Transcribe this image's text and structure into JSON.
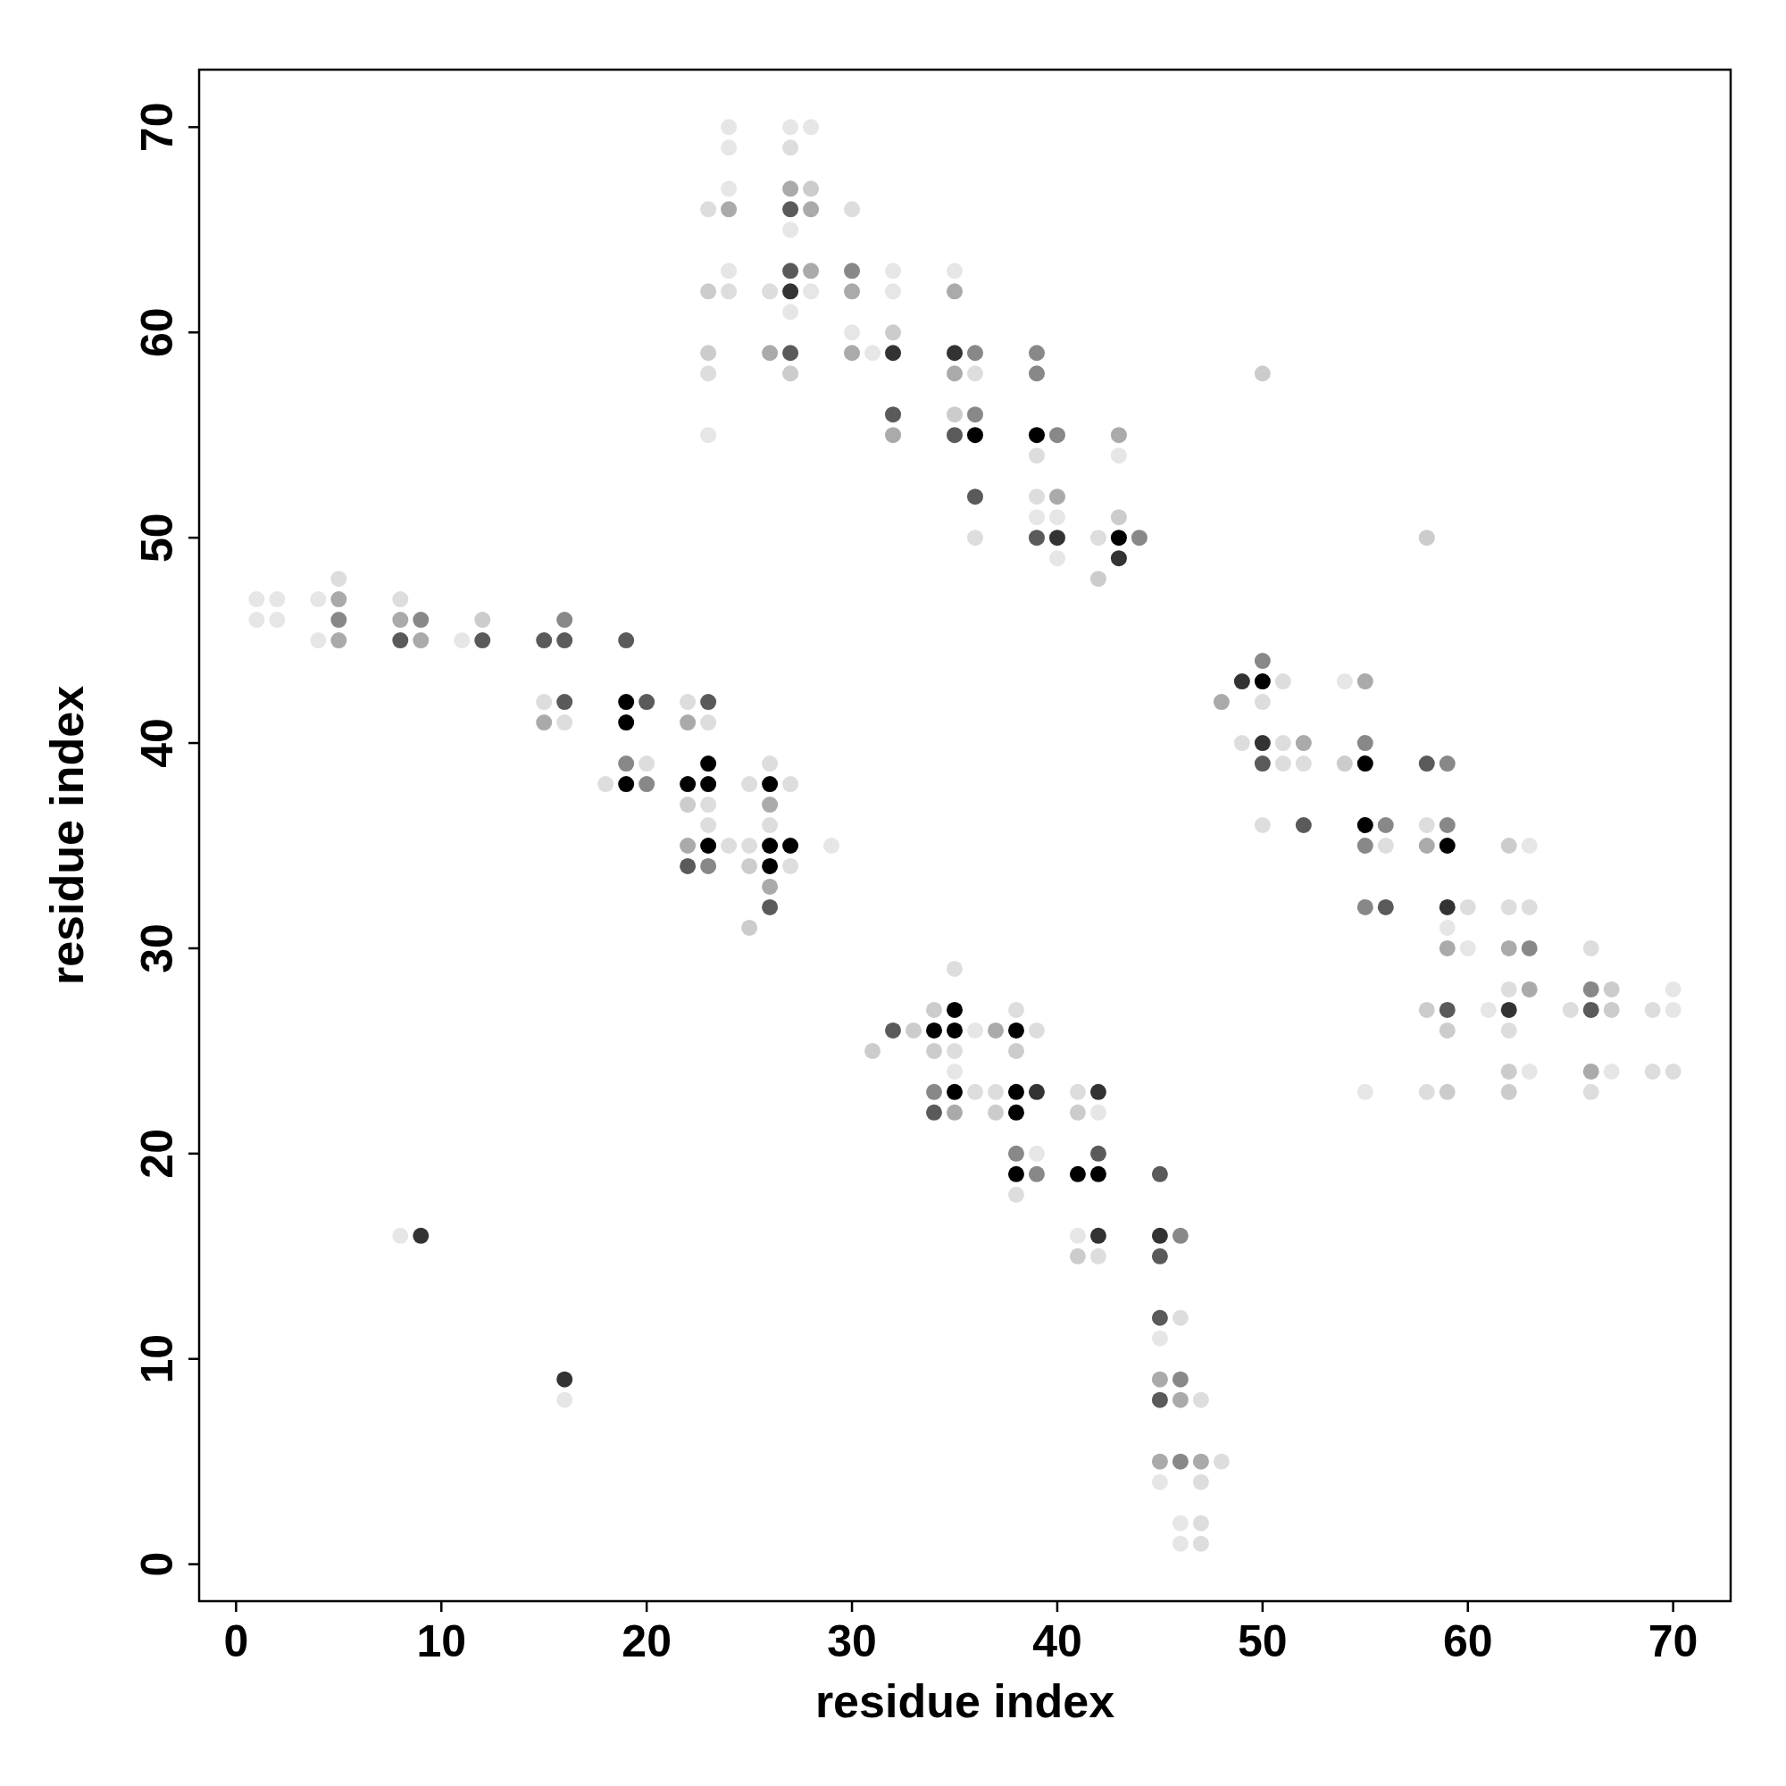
{
  "chart_data": {
    "type": "scatter",
    "xlabel": "residue index",
    "ylabel": "residue index",
    "xlim": [
      -1.8,
      72.8
    ],
    "ylim": [
      -1.8,
      72.8
    ],
    "xticks": [
      0,
      10,
      20,
      30,
      40,
      50,
      60,
      70
    ],
    "yticks": [
      0,
      10,
      20,
      30,
      40,
      50,
      60,
      70
    ],
    "marker": "circle",
    "series": [
      {
        "color": "#e6e6e6",
        "x": [
          1,
          1,
          2,
          2,
          4,
          4,
          11,
          29,
          24,
          24,
          24,
          27,
          28,
          27,
          24,
          28,
          27,
          32,
          32,
          23,
          30,
          31,
          35,
          39,
          40,
          40,
          43,
          54,
          55,
          59,
          60,
          61,
          63,
          63,
          67,
          70,
          70,
          36,
          35,
          42,
          39,
          41,
          45,
          45,
          46,
          46,
          8,
          16
        ],
        "values": [
          47,
          46,
          47,
          46,
          47,
          45,
          45,
          35,
          70,
          69,
          67,
          70,
          70,
          65,
          63,
          62,
          61,
          63,
          62,
          55,
          60,
          59,
          63,
          51,
          51,
          49,
          54,
          43,
          23,
          31,
          30,
          27,
          35,
          24,
          24,
          28,
          27,
          26,
          24,
          22,
          20,
          16,
          11,
          4,
          2,
          1,
          16,
          8
        ]
      },
      {
        "color": "#dddddd",
        "x": [
          5,
          8,
          15,
          16,
          18,
          20,
          22,
          23,
          23,
          23,
          24,
          25,
          26,
          27,
          26,
          25,
          27,
          23,
          27,
          30,
          24,
          26,
          23,
          36,
          36,
          39,
          39,
          42,
          51,
          50,
          49,
          51,
          51,
          52,
          50,
          56,
          58,
          60,
          58,
          63,
          62,
          62,
          62,
          65,
          66,
          66,
          69,
          69,
          70,
          35,
          38,
          39,
          35,
          36,
          37,
          41,
          38,
          42,
          46,
          47,
          48,
          47,
          47,
          47
        ],
        "values": [
          48,
          47,
          42,
          41,
          38,
          39,
          42,
          41,
          37,
          36,
          35,
          38,
          39,
          38,
          36,
          35,
          34,
          66,
          69,
          66,
          62,
          62,
          58,
          58,
          50,
          54,
          52,
          50,
          43,
          42,
          40,
          40,
          39,
          39,
          36,
          35,
          36,
          32,
          23,
          32,
          32,
          28,
          26,
          27,
          30,
          23,
          27,
          24,
          24,
          29,
          27,
          26,
          25,
          23,
          23,
          23,
          18,
          15,
          12,
          8,
          5,
          4,
          2,
          1
        ]
      },
      {
        "color": "#cccccc",
        "x": [
          12,
          25,
          25,
          23,
          23,
          28,
          27,
          32,
          35,
          42,
          43,
          50,
          54,
          58,
          58,
          59,
          59,
          62,
          62,
          62,
          67,
          67,
          34,
          31,
          33,
          34,
          38,
          37,
          41,
          41,
          22
        ],
        "values": [
          46,
          34,
          31,
          62,
          59,
          67,
          58,
          60,
          56,
          48,
          51,
          58,
          39,
          50,
          27,
          26,
          23,
          35,
          24,
          23,
          28,
          27,
          27,
          25,
          26,
          25,
          25,
          22,
          22,
          15,
          37
        ]
      },
      {
        "color": "#aaaaaa",
        "x": [
          5,
          5,
          8,
          9,
          15,
          22,
          22,
          26,
          26,
          24,
          27,
          28,
          28,
          30,
          26,
          30,
          35,
          35,
          32,
          40,
          43,
          48,
          52,
          55,
          58,
          59,
          62,
          63,
          66,
          37,
          35,
          45,
          46,
          45,
          47
        ],
        "values": [
          47,
          45,
          46,
          45,
          41,
          41,
          35,
          37,
          33,
          66,
          67,
          66,
          63,
          62,
          59,
          59,
          62,
          58,
          55,
          52,
          55,
          42,
          40,
          43,
          35,
          30,
          30,
          28,
          24,
          26,
          22,
          9,
          8,
          5,
          5
        ]
      },
      {
        "color": "#888888",
        "x": [
          5,
          9,
          16,
          19,
          20,
          23,
          30,
          36,
          36,
          39,
          39,
          40,
          44,
          50,
          55,
          56,
          55,
          55,
          59,
          59,
          63,
          66,
          34,
          38,
          39,
          46,
          46,
          46
        ],
        "values": [
          46,
          46,
          46,
          39,
          38,
          34,
          63,
          59,
          56,
          59,
          58,
          55,
          50,
          44,
          40,
          36,
          35,
          32,
          39,
          36,
          30,
          28,
          23,
          20,
          19,
          16,
          9,
          5
        ]
      },
      {
        "color": "#5a5a5a",
        "x": [
          8,
          12,
          15,
          16,
          16,
          19,
          20,
          23,
          22,
          26,
          27,
          27,
          27,
          32,
          35,
          36,
          39,
          50,
          52,
          56,
          58,
          59,
          66,
          32,
          34,
          42,
          45,
          45,
          45,
          45
        ],
        "values": [
          45,
          45,
          45,
          45,
          42,
          45,
          42,
          42,
          34,
          32,
          66,
          63,
          59,
          56,
          55,
          52,
          50,
          39,
          36,
          32,
          39,
          27,
          27,
          26,
          22,
          20,
          19,
          15,
          12,
          8
        ]
      },
      {
        "color": "#333333",
        "x": [
          27,
          32,
          35,
          40,
          43,
          49,
          50,
          59,
          62,
          39,
          42,
          42,
          45,
          9,
          16
        ],
        "values": [
          62,
          59,
          59,
          50,
          49,
          43,
          40,
          32,
          27,
          23,
          23,
          16,
          16,
          16,
          9
        ]
      },
      {
        "color": "#000000",
        "x": [
          19,
          19,
          19,
          23,
          22,
          23,
          23,
          26,
          26,
          27,
          26,
          36,
          39,
          43,
          50,
          55,
          55,
          59,
          35,
          34,
          35,
          38,
          35,
          38,
          38,
          38,
          41,
          42
        ],
        "values": [
          42,
          41,
          38,
          39,
          38,
          38,
          35,
          38,
          35,
          35,
          34,
          55,
          55,
          50,
          43,
          39,
          36,
          35,
          27,
          26,
          26,
          26,
          23,
          23,
          22,
          19,
          19,
          19
        ]
      }
    ]
  }
}
